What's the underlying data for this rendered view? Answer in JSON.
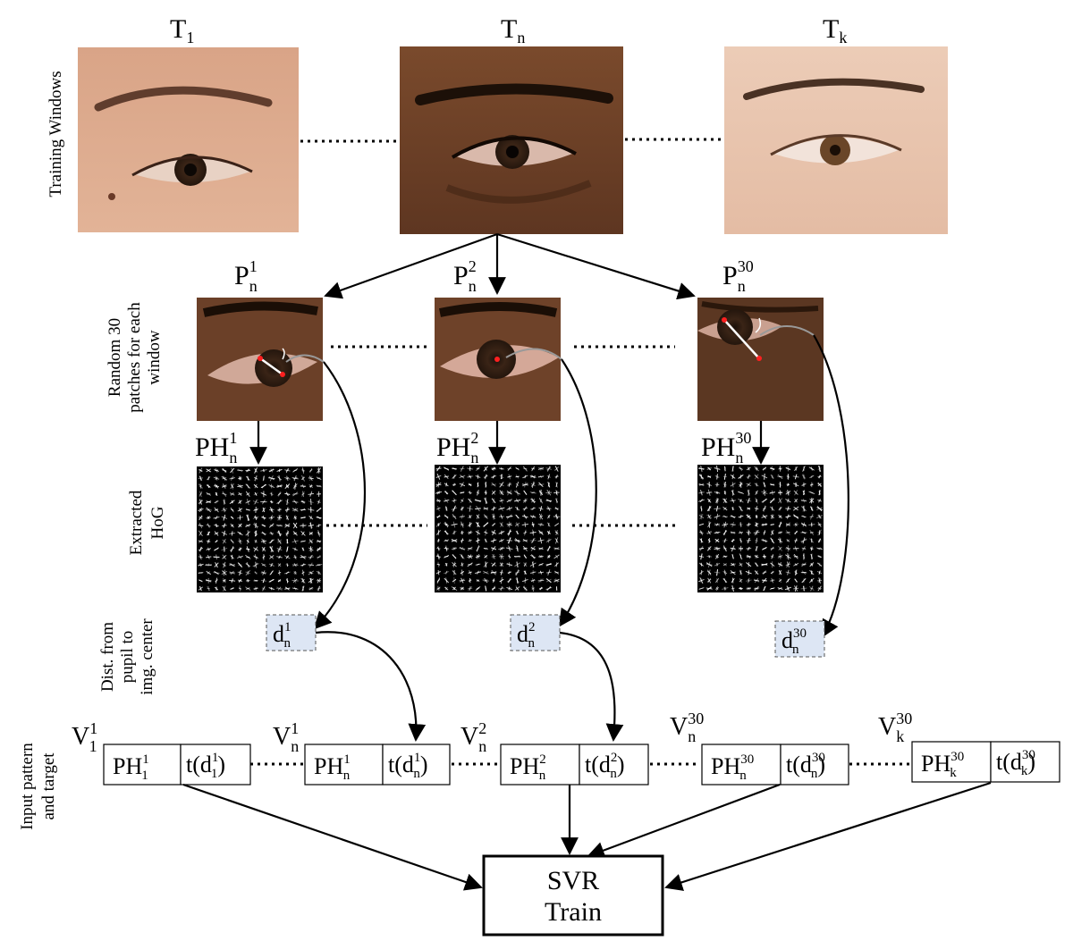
{
  "row_labels": {
    "training": "Training Windows",
    "patches": [
      "Random 30",
      "patches for each",
      "window"
    ],
    "hog": [
      "Extracted",
      "HoG"
    ],
    "distance": [
      "Dist. from",
      "pupil to",
      "img. center"
    ],
    "input": [
      "Input pattern",
      "and target"
    ]
  },
  "windows": [
    {
      "name": "T",
      "sub": "1",
      "skin": "#d8a485",
      "skin_dark": "#b9795c",
      "iris": "#4a2e1e"
    },
    {
      "name": "T",
      "sub": "n",
      "skin": "#8b5a3a",
      "skin_dark": "#5b3520",
      "iris": "#2a1a10"
    },
    {
      "name": "T",
      "sub": "k",
      "skin": "#e9c4ad",
      "skin_dark": "#c9957a",
      "iris": "#5a3a22"
    }
  ],
  "patches": [
    {
      "name": "P",
      "sub": "n",
      "sup": "1"
    },
    {
      "name": "P",
      "sub": "n",
      "sup": "2"
    },
    {
      "name": "P",
      "sub": "n",
      "sup": "30"
    }
  ],
  "hogs": [
    {
      "name": "PH",
      "sub": "n",
      "sup": "1"
    },
    {
      "name": "PH",
      "sub": "n",
      "sup": "2"
    },
    {
      "name": "PH",
      "sub": "n",
      "sup": "30"
    }
  ],
  "distances": [
    {
      "name": "d",
      "sub": "n",
      "sup": "1"
    },
    {
      "name": "d",
      "sub": "n",
      "sup": "2"
    },
    {
      "name": "d",
      "sub": "n",
      "sup": "30"
    }
  ],
  "vectors": [
    {
      "v": "V",
      "v_sub": "1",
      "v_sup": "1",
      "ph_sub": "1",
      "ph_sup": "1",
      "d_sub": "1",
      "d_sup": "1"
    },
    {
      "v": "V",
      "v_sub": "n",
      "v_sup": "1",
      "ph_sub": "n",
      "ph_sup": "1",
      "d_sub": "n",
      "d_sup": "1"
    },
    {
      "v": "V",
      "v_sub": "n",
      "v_sup": "2",
      "ph_sub": "n",
      "ph_sup": "2",
      "d_sub": "n",
      "d_sup": "2"
    },
    {
      "v": "V",
      "v_sub": "n",
      "v_sup": "30",
      "ph_sub": "n",
      "ph_sup": "30",
      "d_sub": "n",
      "d_sup": "30"
    },
    {
      "v": "V",
      "v_sub": "k",
      "v_sup": "30",
      "ph_sub": "k",
      "ph_sup": "30",
      "d_sub": "k",
      "d_sup": "30"
    }
  ],
  "ph_name": "PH",
  "t_name": "t(d",
  "t_close": ")",
  "svr": {
    "line1": "SVR",
    "line2": "Train"
  },
  "colors": {
    "dist_box": "#dde6f4",
    "dist_border": "#555555",
    "hog_bg": "#000000",
    "arrow": "#000000",
    "pupil_mark": "#ff2020"
  }
}
